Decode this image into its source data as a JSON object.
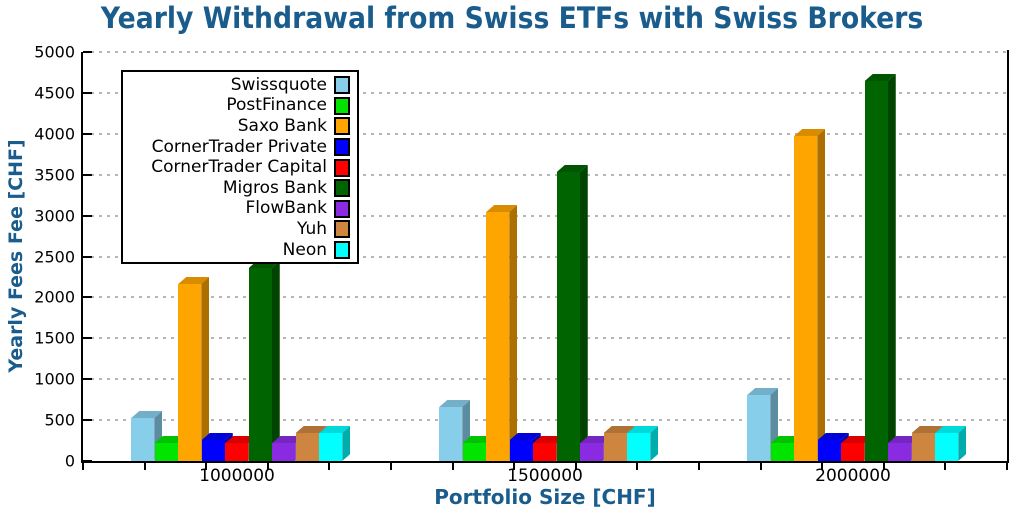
{
  "chart_data": {
    "type": "bar",
    "title": "Yearly Withdrawal from Swiss ETFs with Swiss Brokers",
    "xlabel": "Portfolio Size [CHF]",
    "ylabel": "Yearly Fees Fee [CHF]",
    "categories": [
      "1000000",
      "1500000",
      "2000000"
    ],
    "ylim": [
      0,
      5000
    ],
    "ytick_step": 500,
    "yticks": [
      0,
      500,
      1000,
      1500,
      2000,
      2500,
      3000,
      3500,
      4000,
      4500,
      5000
    ],
    "grid": "horizontal dashed",
    "legend_position": "upper left",
    "bar_style": "3d",
    "series": [
      {
        "name": "Swissquote",
        "color": "#87CEEB",
        "values": [
          530,
          665,
          805
        ]
      },
      {
        "name": "PostFinance",
        "color": "#00E400",
        "values": [
          220,
          220,
          220
        ]
      },
      {
        "name": "Saxo Bank",
        "color": "#FFA500",
        "values": [
          2160,
          3050,
          3970
        ]
      },
      {
        "name": "CornerTrader Private",
        "color": "#0000FF",
        "values": [
          255,
          255,
          255
        ]
      },
      {
        "name": "CornerTrader Capital",
        "color": "#FF0000",
        "values": [
          215,
          215,
          215
        ]
      },
      {
        "name": "Migros Bank",
        "color": "#006400",
        "values": [
          2355,
          3535,
          4650
        ]
      },
      {
        "name": "FlowBank",
        "color": "#8A2BE2",
        "values": [
          225,
          225,
          225
        ]
      },
      {
        "name": "Yuh",
        "color": "#CD853F",
        "values": [
          340,
          340,
          340
        ]
      },
      {
        "name": "Neon",
        "color": "#00FFFF",
        "values": [
          345,
          345,
          345
        ]
      }
    ],
    "accent_color": "#1a5c8c"
  }
}
